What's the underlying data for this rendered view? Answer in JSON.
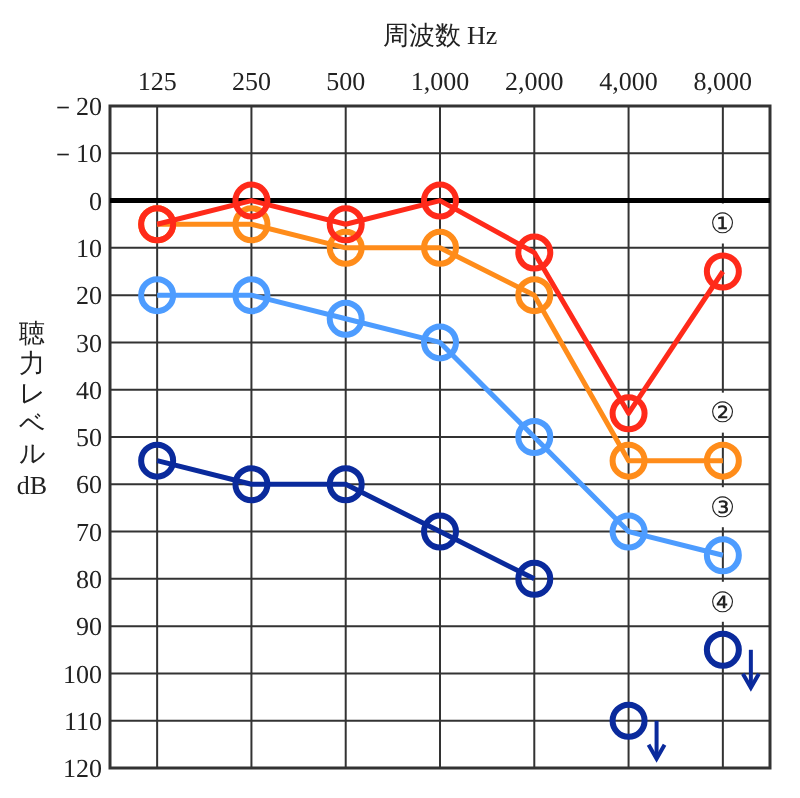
{
  "chart_data": {
    "type": "line",
    "xlabel": "周波数 Hz",
    "ylabel": "聴力レベル dB",
    "categories": [
      "125",
      "250",
      "500",
      "1,000",
      "2,000",
      "4,000",
      "8,000"
    ],
    "ylim": [
      120,
      -20
    ],
    "yticks": [
      {
        "value": -20,
        "label": "－20"
      },
      {
        "value": -10,
        "label": "－10"
      },
      0,
      10,
      20,
      30,
      40,
      50,
      60,
      70,
      80,
      90,
      100,
      110,
      120
    ],
    "grid": true,
    "marker": "circle",
    "ref_lines": [
      {
        "axis": "y",
        "value": 0,
        "color": "#000000"
      }
    ],
    "series": [
      {
        "name": "①",
        "color": "#ff2a1a",
        "values": [
          5,
          0,
          5,
          0,
          11,
          45,
          15
        ]
      },
      {
        "name": "②",
        "color": "#ff8c1a",
        "values": [
          5,
          5,
          10,
          10,
          20,
          55,
          55
        ]
      },
      {
        "name": "③",
        "color": "#4d9cff",
        "values": [
          20,
          20,
          25,
          30,
          50,
          70,
          75
        ]
      },
      {
        "name": "④",
        "color": "#0a2a9c",
        "values": [
          55,
          60,
          60,
          70,
          80,
          null,
          null
        ]
      },
      {
        "type": "scatter",
        "color": "#0a2a9c",
        "values": [
          null,
          null,
          null,
          null,
          null,
          110,
          95
        ]
      }
    ]
  }
}
